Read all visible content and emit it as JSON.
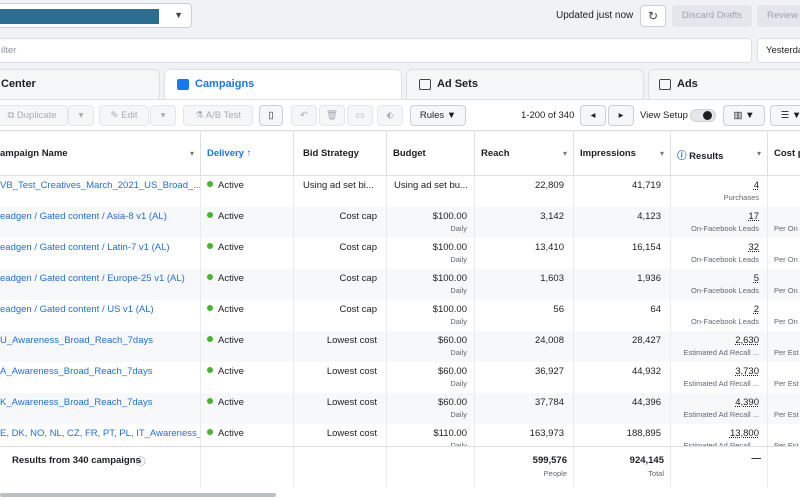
{
  "header": {
    "updated": "Updated just now",
    "discard": "Discard Drafts",
    "review": "Review"
  },
  "filter": {
    "placeholder": "ilter",
    "date": "Yesterday"
  },
  "tabs": [
    {
      "label": "Center"
    },
    {
      "label": "Campaigns"
    },
    {
      "label": "Ad Sets"
    },
    {
      "label": "Ads"
    }
  ],
  "toolbar": {
    "duplicate": "Duplicate",
    "edit": "Edit",
    "ab_test": "A/B Test",
    "rules": "Rules",
    "pagination": "1-200 of 340",
    "view_setup": "View Setup"
  },
  "columns": {
    "name": "ampaign Name",
    "delivery": "Delivery ↑",
    "bid": "Bid Strategy",
    "budget": "Budget",
    "reach": "Reach",
    "impressions": "Impressions",
    "results": "Results",
    "cost": "Cost p"
  },
  "rows": [
    {
      "name": "VB_Test_Creatives_March_2021_US_Broad_...",
      "delivery": "Active",
      "bid": "Using ad set bi...",
      "budget": "Using ad set bu...",
      "budget_sub": "",
      "reach": "22,809",
      "impressions": "41,719",
      "results": "4",
      "results_sub": "Purchases",
      "cost_sub": ""
    },
    {
      "name": "eadgen / Gated content / Asia-8 v1 (AL)",
      "delivery": "Active",
      "bid": "Cost cap",
      "budget": "$100.00",
      "budget_sub": "Daily",
      "reach": "3,142",
      "impressions": "4,123",
      "results": "17",
      "results_sub": "On-Facebook Leads",
      "cost_sub": "Per On"
    },
    {
      "name": "eadgen / Gated content / Latin-7 v1 (AL)",
      "delivery": "Active",
      "bid": "Cost cap",
      "budget": "$100.00",
      "budget_sub": "Daily",
      "reach": "13,410",
      "impressions": "16,154",
      "results": "32",
      "results_sub": "On-Facebook Leads",
      "cost_sub": "Per On"
    },
    {
      "name": "eadgen / Gated content / Europe-25 v1 (AL)",
      "delivery": "Active",
      "bid": "Cost cap",
      "budget": "$100.00",
      "budget_sub": "Daily",
      "reach": "1,603",
      "impressions": "1,936",
      "results": "5",
      "results_sub": "On-Facebook Leads",
      "cost_sub": "Per On"
    },
    {
      "name": "eadgen / Gated content / US v1 (AL)",
      "delivery": "Active",
      "bid": "Cost cap",
      "budget": "$100.00",
      "budget_sub": "Daily",
      "reach": "56",
      "impressions": "64",
      "results": "2",
      "results_sub": "On-Facebook Leads",
      "cost_sub": "Per On"
    },
    {
      "name": "U_Awareness_Broad_Reach_7days",
      "delivery": "Active",
      "bid": "Lowest cost",
      "budget": "$60.00",
      "budget_sub": "Daily",
      "reach": "24,008",
      "impressions": "28,427",
      "results": "2,630",
      "results_sub": "Estimated Ad Recall ...",
      "cost_sub": "Per Est"
    },
    {
      "name": "A_Awareness_Broad_Reach_7days",
      "delivery": "Active",
      "bid": "Lowest cost",
      "budget": "$60.00",
      "budget_sub": "Daily",
      "reach": "36,927",
      "impressions": "44,932",
      "results": "3,730",
      "results_sub": "Estimated Ad Recall ...",
      "cost_sub": "Per Est"
    },
    {
      "name": "K_Awareness_Broad_Reach_7days",
      "delivery": "Active",
      "bid": "Lowest cost",
      "budget": "$60.00",
      "budget_sub": "Daily",
      "reach": "37,784",
      "impressions": "44,396",
      "results": "4,390",
      "results_sub": "Estimated Ad Recall ...",
      "cost_sub": "Per Est"
    },
    {
      "name": "E, DK, NO, NL, CZ, FR, PT, PL, IT_Awareness_...",
      "delivery": "Active",
      "bid": "Lowest cost",
      "budget": "$110.00",
      "budget_sub": "Daily",
      "reach": "163,973",
      "impressions": "188,895",
      "results": "13,800",
      "results_sub": "Estimated Ad Recall ...",
      "cost_sub": "Per Est"
    }
  ],
  "footer": {
    "label": "Results from 340 campaigns",
    "reach": "599,576",
    "reach_sub": "People",
    "impressions": "924,145",
    "impressions_sub": "Total",
    "results": "—"
  }
}
